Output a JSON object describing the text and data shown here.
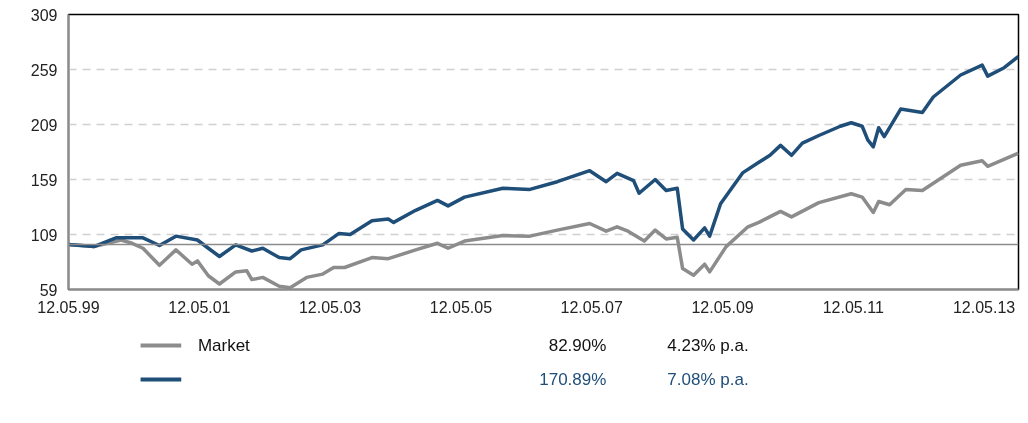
{
  "chart_data": {
    "type": "line",
    "xlim": [
      "1999-05-12",
      "2013-11-20"
    ],
    "xticks": [
      {
        "value": "1999-05-12",
        "label": "12.05.99"
      },
      {
        "value": "2001-05-12",
        "label": "12.05.01"
      },
      {
        "value": "2003-05-12",
        "label": "12.05.03"
      },
      {
        "value": "2005-05-12",
        "label": "12.05.05"
      },
      {
        "value": "2007-05-12",
        "label": "12.05.07"
      },
      {
        "value": "2009-05-12",
        "label": "12.05.09"
      },
      {
        "value": "2011-05-12",
        "label": "12.05.11"
      },
      {
        "value": "2013-05-12",
        "label": "12.05.13"
      }
    ],
    "ylim": [
      59,
      309
    ],
    "yticks": [
      59,
      109,
      159,
      209,
      259,
      309
    ],
    "grid": "y",
    "legend": "bottom",
    "line_style": "solid",
    "marker": "none",
    "ref_lines": [
      {
        "axis": "y",
        "value": 100,
        "label": null,
        "color": "#8c8c8c"
      }
    ],
    "annotations": [
      "82.90%",
      "4.23% p.a.",
      "170.89%",
      "7.08% p.a."
    ],
    "series": [
      {
        "name": "Market",
        "color": "#8c8c8c",
        "x": [
          "1999-05-12",
          "1999-10",
          "2000-03",
          "2000-05",
          "2000-07",
          "2000-09",
          "2000-10",
          "2001-01",
          "2001-04",
          "2001-05",
          "2001-07",
          "2001-09",
          "2001-12",
          "2002-02",
          "2002-03",
          "2002-05",
          "2002-08",
          "2002-10",
          "2003-01",
          "2003-04",
          "2003-06",
          "2003-08",
          "2004-01",
          "2004-04",
          "2004-09",
          "2005-01",
          "2005-03",
          "2005-06",
          "2006-01",
          "2006-06",
          "2006-11",
          "2007-05",
          "2007-08",
          "2007-10",
          "2007-12",
          "2008-03",
          "2008-05",
          "2008-07",
          "2008-09",
          "2008-10",
          "2008-12",
          "2009-02",
          "2009-03",
          "2009-06",
          "2009-10",
          "2009-12",
          "2010-04",
          "2010-06",
          "2010-11",
          "2011-05",
          "2011-07",
          "2011-09",
          "2011-10",
          "2011-12",
          "2012-03",
          "2012-06",
          "2013-01",
          "2013-05",
          "2013-06",
          "2013-11-20"
        ],
        "values": [
          100,
          98,
          104,
          101,
          96.5,
          86,
          81,
          95,
          82,
          85,
          71.5,
          64,
          75,
          76,
          68,
          70,
          62,
          60.6,
          70,
          73,
          79,
          79,
          88,
          87,
          95,
          101,
          96.5,
          103,
          108,
          107.5,
          113,
          119,
          112,
          116,
          112,
          103,
          113,
          105,
          106.5,
          78,
          72,
          82,
          75,
          98,
          116,
          120,
          130,
          125,
          138,
          146,
          143,
          129,
          139,
          136,
          150,
          149,
          172,
          176,
          171,
          182.9
        ]
      },
      {
        "color": "#1f4e79",
        "x": [
          "1999-05-12",
          "1999-10",
          "2000-02",
          "2000-07",
          "2000-10",
          "2001-01",
          "2001-05",
          "2001-07",
          "2001-09",
          "2001-12",
          "2002-03",
          "2002-05",
          "2002-08",
          "2002-10",
          "2002-12",
          "2003-04",
          "2003-07",
          "2003-09",
          "2004-01",
          "2004-04",
          "2004-05",
          "2004-09",
          "2005-01",
          "2005-03",
          "2005-06",
          "2006-01",
          "2006-06",
          "2006-11",
          "2007-05",
          "2007-08",
          "2007-10",
          "2008-01",
          "2008-02",
          "2008-05",
          "2008-07",
          "2008-09",
          "2008-10",
          "2008-12",
          "2009-02",
          "2009-03",
          "2009-05",
          "2009-09",
          "2009-12",
          "2010-02",
          "2010-04",
          "2010-06",
          "2010-08",
          "2010-11",
          "2011-03",
          "2011-05",
          "2011-07",
          "2011-08",
          "2011-09",
          "2011-10",
          "2011-11",
          "2012-02",
          "2012-06",
          "2012-08",
          "2013-01",
          "2013-05",
          "2013-06",
          "2013-09",
          "2013-11-20"
        ],
        "values": [
          100,
          98,
          106,
          106,
          99,
          107.5,
          104,
          96.5,
          89,
          99.6,
          94,
          96.5,
          88,
          87,
          95,
          99.6,
          110,
          109,
          121.5,
          123,
          120,
          131,
          140,
          135,
          143,
          151,
          150,
          157,
          167,
          157,
          164.6,
          158,
          146.5,
          159,
          149,
          151,
          114,
          104,
          115,
          107.5,
          137,
          165,
          174.6,
          181,
          190,
          181,
          192,
          199,
          207.4,
          210.6,
          207.4,
          195,
          188.7,
          206,
          198,
          223,
          220,
          234,
          254,
          263,
          253,
          260.6,
          270.89
        ]
      }
    ]
  }
}
